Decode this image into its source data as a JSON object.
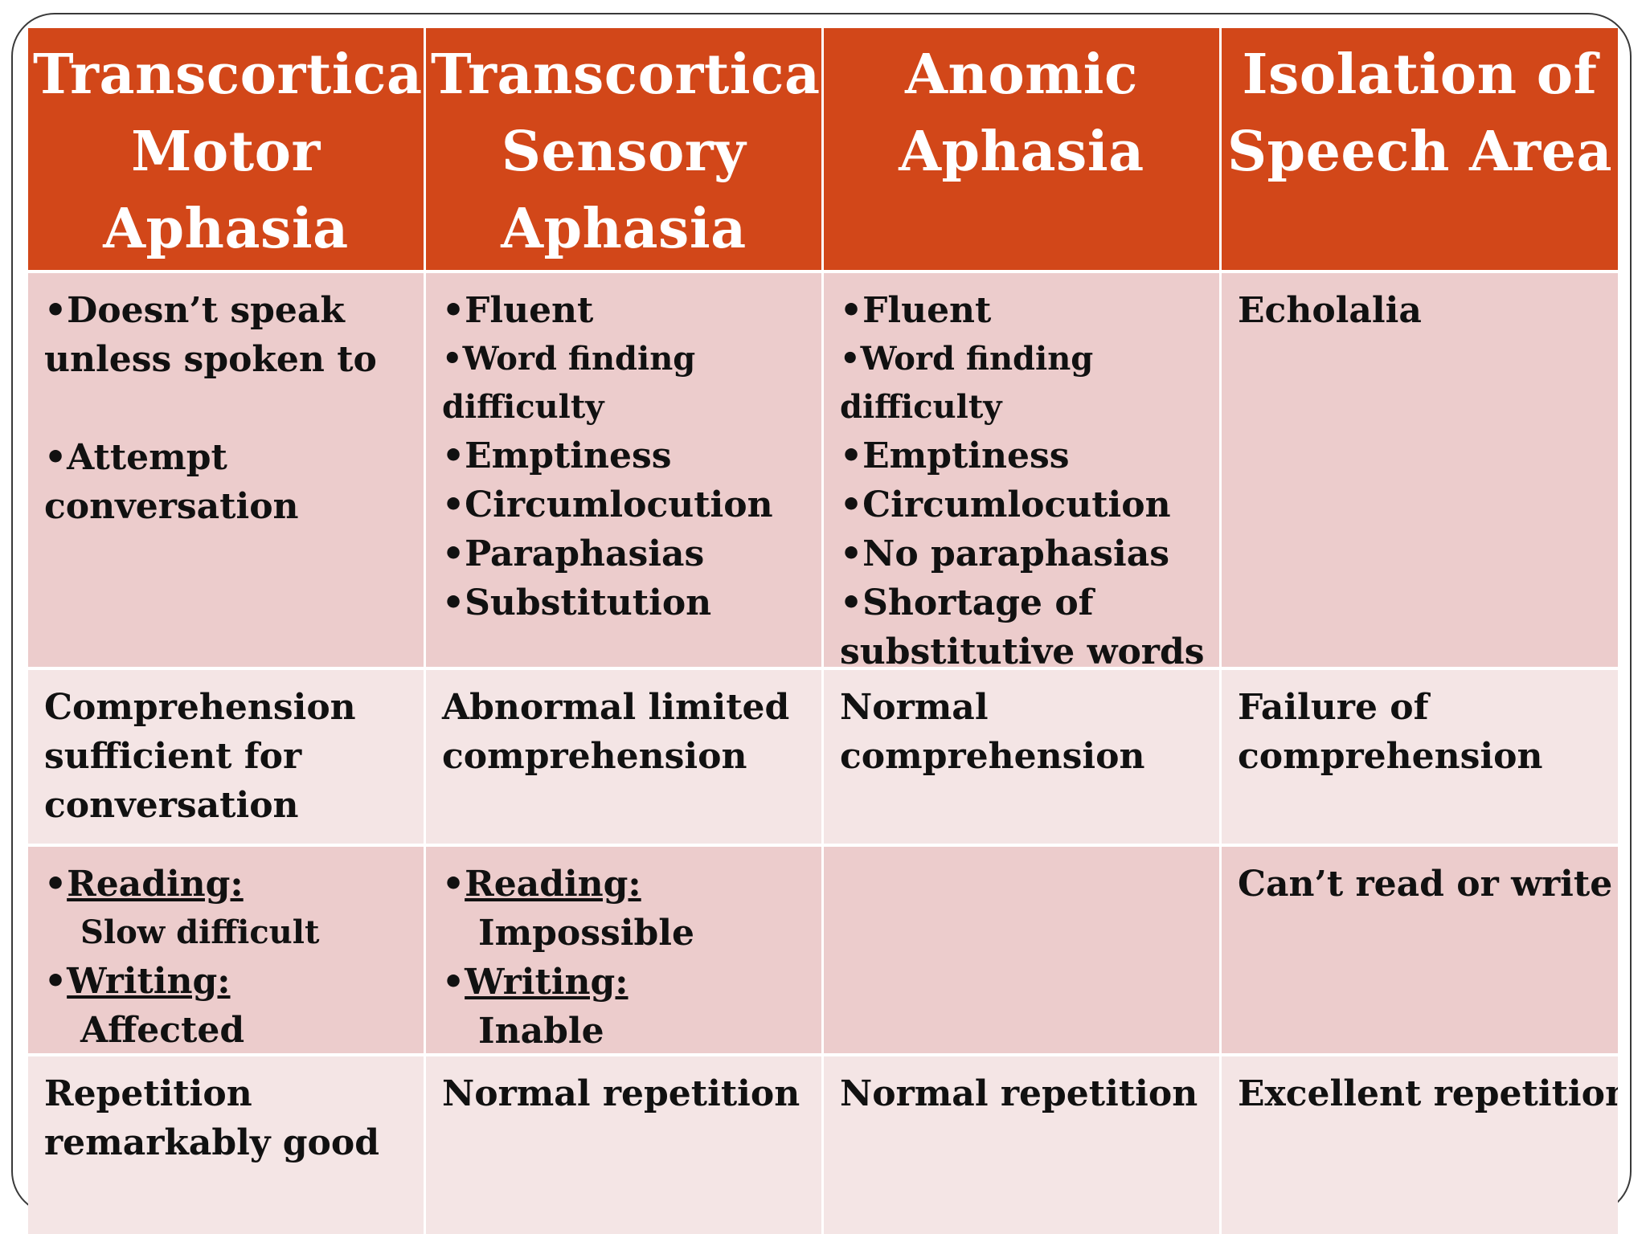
{
  "headers": [
    {
      "line1": "Transcortical",
      "line2": "Motor",
      "line3": "Aphasia"
    },
    {
      "line1": "Transcortical",
      "line2": "Sensory",
      "line3": "Aphasia"
    },
    {
      "line1": "Anomic",
      "line2": "Aphasia"
    },
    {
      "line1": "Isolation of",
      "line2": "Speech Area"
    }
  ],
  "row1": {
    "c1": {
      "l1": "•Doesn’t speak",
      "l2": "unless spoken to",
      "l3": "•Attempt",
      "l4": "conversation"
    },
    "c2": {
      "l1": "•Fluent",
      "l2": "•Word finding",
      "l3": "difficulty",
      "l4": "•Emptiness",
      "l5": "•Circumlocution",
      "l6": "•Paraphasias",
      "l7": "•Substitution"
    },
    "c3": {
      "l1": "•Fluent",
      "l2": "•Word finding",
      "l3": "difficulty",
      "l4": "•Emptiness",
      "l5": "•Circumlocution",
      "l6": "•No paraphasias",
      "l7": "•Shortage of",
      "l8": "substitutive words"
    },
    "c4": {
      "l1": "Echolalia"
    }
  },
  "row2": {
    "c1": {
      "l1": "Comprehension",
      "l2": "sufficient for",
      "l3": "conversation"
    },
    "c2": {
      "l1": "Abnormal limited",
      "l2": "comprehension"
    },
    "c3": {
      "l1": "Normal",
      "l2": "comprehension"
    },
    "c4": {
      "l1": "Failure of",
      "l2": "comprehension"
    }
  },
  "row3": {
    "c1": {
      "bullet": "•",
      "reading": "Reading:",
      "reading_val": "Slow difficult",
      "writing": "Writing:",
      "writing_val": "Affected"
    },
    "c2": {
      "bullet": "•",
      "reading": "Reading:",
      "reading_val": "Impossible",
      "writing": "Writing:",
      "writing_val": "Inable"
    },
    "c3": {},
    "c4": {
      "l1": "Can’t read or write"
    }
  },
  "row4": {
    "c1": {
      "l1": "Repetition",
      "l2": "remarkably good"
    },
    "c2": {
      "l1": "Normal repetition"
    },
    "c3": {
      "l1": "Normal repetition"
    },
    "c4": {
      "l1": "Excellent repetition"
    }
  },
  "colors": {
    "header": "#d24719",
    "row_dark": "#eccccc",
    "row_light": "#f4e5e5"
  }
}
